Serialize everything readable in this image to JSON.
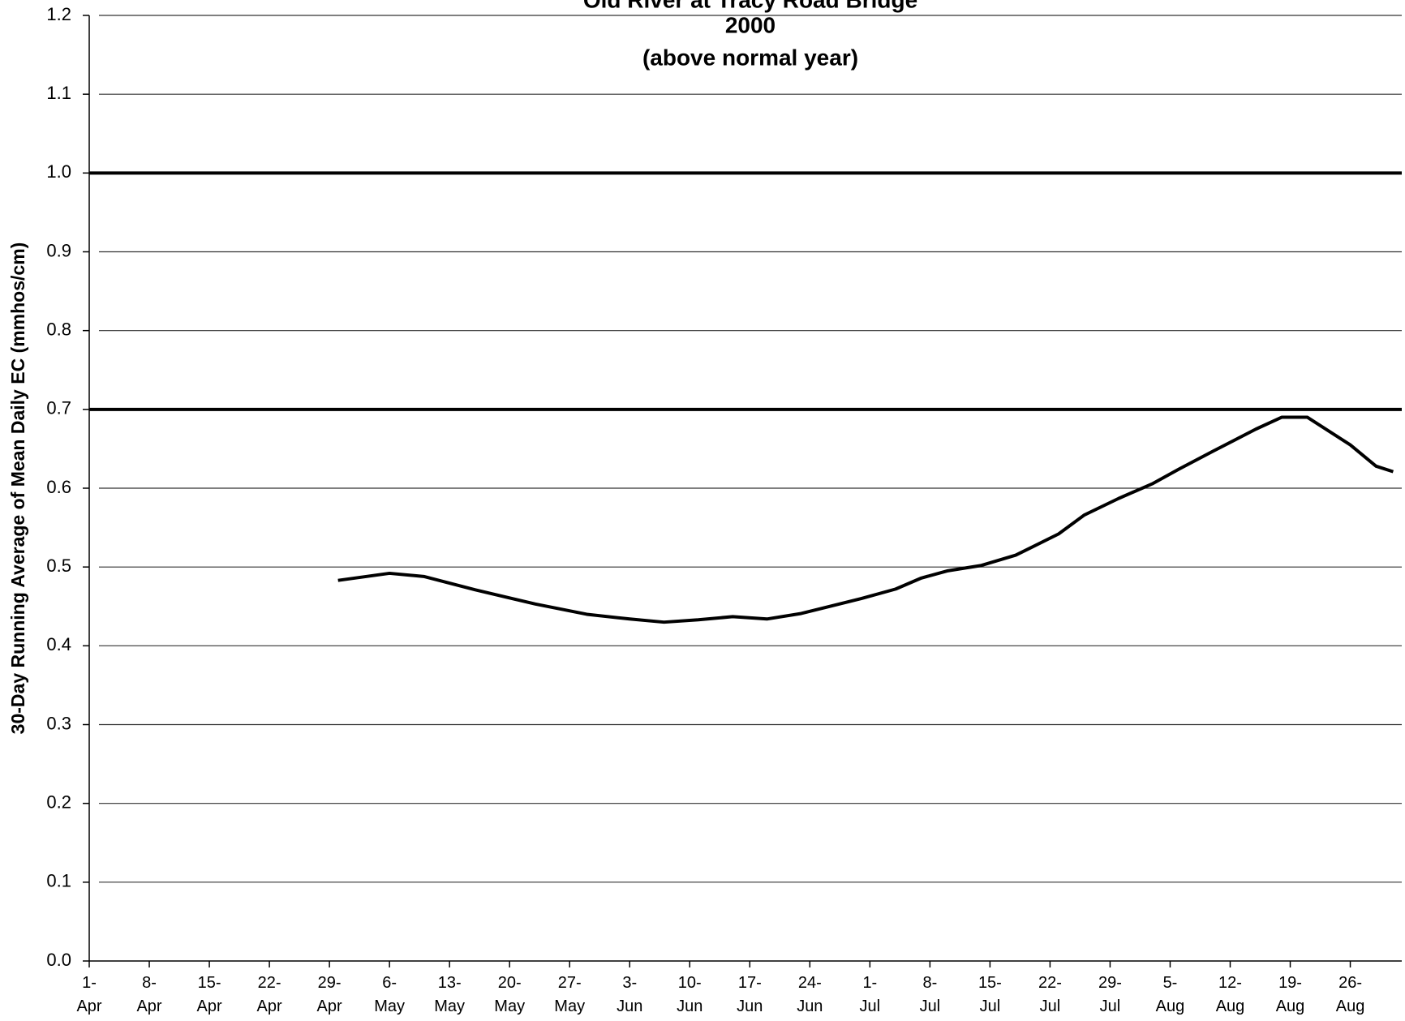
{
  "chart_data": {
    "type": "line",
    "title": [
      "Old River at Tracy Road Bridge",
      "2000",
      "(above normal year)"
    ],
    "y_label": "30-Day Running Average of Mean Daily EC (mmhos/cm)",
    "x": [
      29,
      35,
      39,
      45,
      52,
      58,
      63,
      67,
      71,
      75,
      79,
      83,
      90,
      94,
      97,
      100,
      104,
      108,
      113,
      116,
      120,
      124,
      127,
      131,
      136,
      139,
      142,
      147,
      150,
      152
    ],
    "series": [
      {
        "color": "#000000",
        "values": [
          0.483,
          0.492,
          0.488,
          0.471,
          0.453,
          0.44,
          0.434,
          0.43,
          0.433,
          0.437,
          0.434,
          0.441,
          0.46,
          0.472,
          0.486,
          0.495,
          0.502,
          0.515,
          0.542,
          0.566,
          0.587,
          0.606,
          0.624,
          0.647,
          0.675,
          0.69,
          0.69,
          0.655,
          0.628,
          0.621
        ]
      }
    ],
    "reference_lines": [
      1.0,
      0.7
    ],
    "xlim": [
      0,
      153
    ],
    "xticks": [
      {
        "value": 0,
        "label": "1-Apr"
      },
      {
        "value": 7,
        "label": "8-Apr"
      },
      {
        "value": 14,
        "label": "15-Apr"
      },
      {
        "value": 21,
        "label": "22-Apr"
      },
      {
        "value": 28,
        "label": "29-Apr"
      },
      {
        "value": 35,
        "label": "6-May"
      },
      {
        "value": 42,
        "label": "13-May"
      },
      {
        "value": 49,
        "label": "20-May"
      },
      {
        "value": 56,
        "label": "27-May"
      },
      {
        "value": 63,
        "label": "3-Jun"
      },
      {
        "value": 70,
        "label": "10-Jun"
      },
      {
        "value": 77,
        "label": "17-Jun"
      },
      {
        "value": 84,
        "label": "24-Jun"
      },
      {
        "value": 91,
        "label": "1-Jul"
      },
      {
        "value": 98,
        "label": "8-Jul"
      },
      {
        "value": 105,
        "label": "15-Jul"
      },
      {
        "value": 112,
        "label": "22-Jul"
      },
      {
        "value": 119,
        "label": "29-Jul"
      },
      {
        "value": 126,
        "label": "5-Aug"
      },
      {
        "value": 133,
        "label": "12-Aug"
      },
      {
        "value": 140,
        "label": "19-Aug"
      },
      {
        "value": 147,
        "label": "26-Aug"
      }
    ],
    "ylim": [
      0,
      1.2
    ],
    "yticks": [
      {
        "value": 0,
        "label": "0.0"
      },
      0.1,
      0.2,
      0.3,
      0.4,
      0.5,
      0.6,
      0.7,
      0.8,
      0.9,
      {
        "value": 1,
        "label": "1.0"
      },
      1.1,
      1.2
    ],
    "grid": true
  }
}
